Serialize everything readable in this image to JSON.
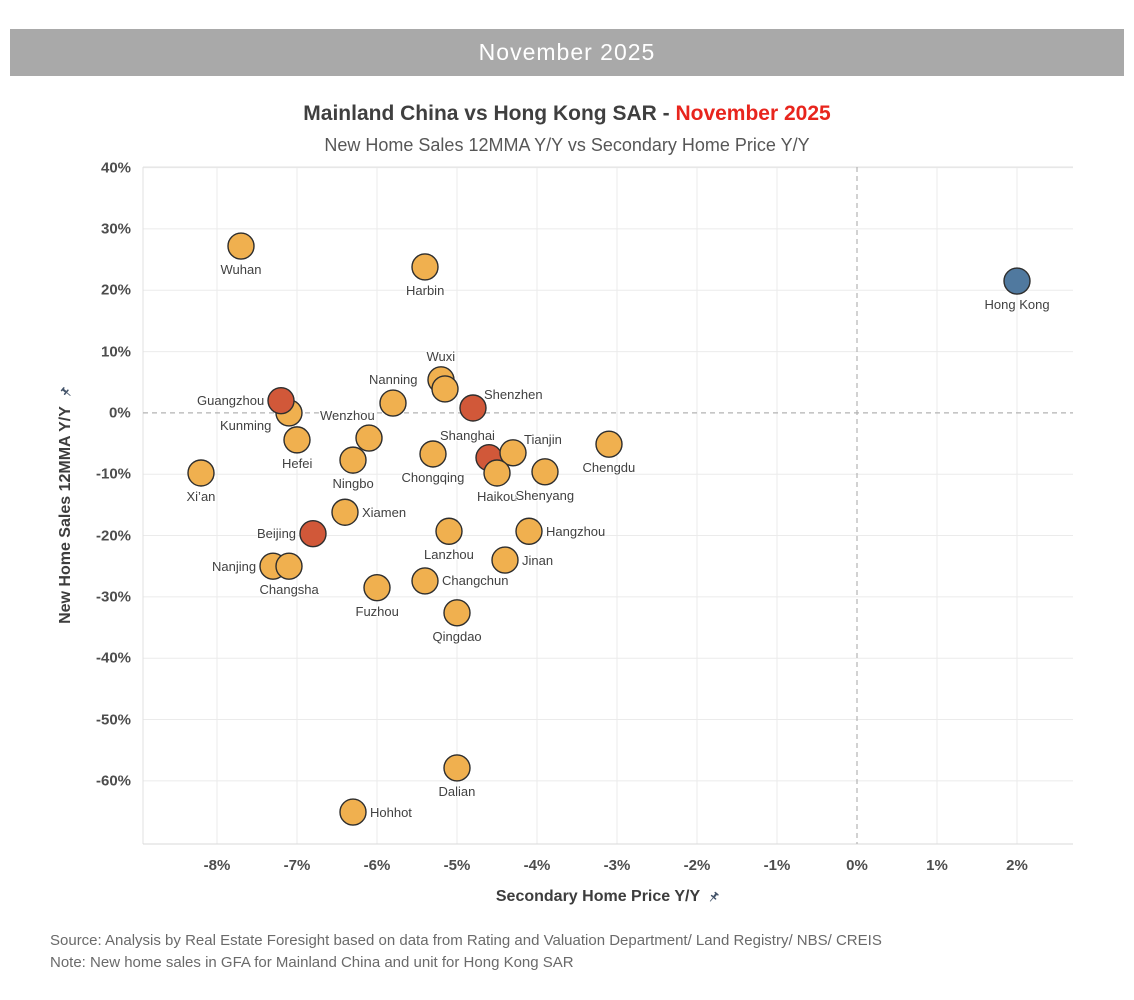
{
  "banner": {
    "title": "November 2025"
  },
  "chart": {
    "title_main": "Mainland China vs Hong Kong SAR - ",
    "title_highlight": "November 2025",
    "subtitle": "New Home Sales 12MMA Y/Y vs Secondary Home Price Y/Y"
  },
  "footer": {
    "source": "Source: Analysis by Real Estate Foresight based on data from Rating and Valuation Department/ Land Registry/ NBS/ CREIS",
    "note": "Note: New home sales in GFA for Mainland China and unit for Hong Kong SAR"
  },
  "chart_data": {
    "type": "scatter",
    "title": "Mainland China vs Hong Kong SAR - November 2025",
    "subtitle": "New Home Sales 12MMA Y/Y vs Secondary Home Price Y/Y",
    "xlabel": "Secondary Home Price Y/Y",
    "ylabel": "New Home Sales 12MMA Y/Y",
    "unit": "%",
    "xlim": [
      -8.925,
      2.7
    ],
    "ylim": [
      -70.3,
      40.1
    ],
    "x_ticks": [
      -8,
      -7,
      -6,
      -5,
      -4,
      -3,
      -2,
      -1,
      0,
      1,
      2
    ],
    "y_ticks": [
      40,
      30,
      20,
      10,
      0,
      -10,
      -20,
      -30,
      -40,
      -50,
      -60
    ],
    "grid": true,
    "zero_lines": "dashed",
    "legend": "none",
    "colors": {
      "mainland": "#f0b04f",
      "tier1": "#d15839",
      "hongkong": "#50799f",
      "marker_stroke": "#2e2e2e",
      "gridline": "#ebebeb",
      "zero_line": "#b3b3b3"
    },
    "points": [
      {
        "label": "Wuhan",
        "x": -7.7,
        "y": 27.2,
        "group": "mainland",
        "label_pos": "below"
      },
      {
        "label": "Harbin",
        "x": -5.4,
        "y": 23.8,
        "group": "mainland",
        "label_pos": "below"
      },
      {
        "label": "Hong Kong",
        "x": 2.0,
        "y": 21.5,
        "group": "hongkong",
        "label_pos": "below"
      },
      {
        "label": "Wuxi",
        "x": -5.2,
        "y": 5.4,
        "group": "mainland",
        "label_pos": "above"
      },
      {
        "label": "",
        "x": -5.15,
        "y": 3.9,
        "group": "mainland",
        "label_pos": "none"
      },
      {
        "label": "Nanning",
        "x": -5.8,
        "y": 1.6,
        "group": "mainland",
        "label_pos": "above"
      },
      {
        "label": "Shenzhen",
        "x": -4.8,
        "y": 0.8,
        "group": "tier1",
        "label_pos": "above-right"
      },
      {
        "label": "Kunming",
        "x": -7.1,
        "y": 0.0,
        "group": "mainland",
        "label_pos": "below-left"
      },
      {
        "label": "Guangzhou",
        "x": -7.2,
        "y": 2.0,
        "group": "tier1",
        "label_pos": "left"
      },
      {
        "label": "Wenzhou",
        "x": -6.1,
        "y": -4.1,
        "group": "mainland",
        "label_pos": "above-left"
      },
      {
        "label": "Hefei",
        "x": -7.0,
        "y": -4.4,
        "group": "mainland",
        "label_pos": "below"
      },
      {
        "label": "Ningbo",
        "x": -6.3,
        "y": -7.7,
        "group": "mainland",
        "label_pos": "below"
      },
      {
        "label": "Chongqing",
        "x": -5.3,
        "y": -6.7,
        "group": "mainland",
        "label_pos": "below"
      },
      {
        "label": "Shanghai",
        "x": -4.6,
        "y": -7.3,
        "group": "tier1",
        "label_pos": "above-left"
      },
      {
        "label": "Tianjin",
        "x": -4.3,
        "y": -6.5,
        "group": "mainland",
        "label_pos": "above-right"
      },
      {
        "label": "Haikou",
        "x": -4.5,
        "y": -9.8,
        "group": "mainland",
        "label_pos": "below"
      },
      {
        "label": "Shenyang",
        "x": -3.9,
        "y": -9.6,
        "group": "mainland",
        "label_pos": "below"
      },
      {
        "label": "Chengdu",
        "x": -3.1,
        "y": -5.1,
        "group": "mainland",
        "label_pos": "below"
      },
      {
        "label": "Xi’an",
        "x": -8.2,
        "y": -9.8,
        "group": "mainland",
        "label_pos": "below"
      },
      {
        "label": "Xiamen",
        "x": -6.4,
        "y": -16.2,
        "group": "mainland",
        "label_pos": "right"
      },
      {
        "label": "Beijing",
        "x": -6.8,
        "y": -19.7,
        "group": "tier1",
        "label_pos": "left"
      },
      {
        "label": "Hangzhou",
        "x": -4.1,
        "y": -19.3,
        "group": "mainland",
        "label_pos": "right"
      },
      {
        "label": "Lanzhou",
        "x": -5.1,
        "y": -19.3,
        "group": "mainland",
        "label_pos": "below"
      },
      {
        "label": "Jinan",
        "x": -4.4,
        "y": -24.0,
        "group": "mainland",
        "label_pos": "right"
      },
      {
        "label": "Nanjing",
        "x": -7.3,
        "y": -25.0,
        "group": "mainland",
        "label_pos": "left"
      },
      {
        "label": "Changsha",
        "x": -7.1,
        "y": -25.0,
        "group": "mainland",
        "label_pos": "below"
      },
      {
        "label": "Changchun",
        "x": -5.4,
        "y": -27.4,
        "group": "mainland",
        "label_pos": "right"
      },
      {
        "label": "Fuzhou",
        "x": -6.0,
        "y": -28.5,
        "group": "mainland",
        "label_pos": "below"
      },
      {
        "label": "Qingdao",
        "x": -5.0,
        "y": -32.6,
        "group": "mainland",
        "label_pos": "below"
      },
      {
        "label": "Dalian",
        "x": -5.0,
        "y": -57.9,
        "group": "mainland",
        "label_pos": "below"
      },
      {
        "label": "Hohhot",
        "x": -6.3,
        "y": -65.1,
        "group": "mainland",
        "label_pos": "right"
      }
    ]
  }
}
